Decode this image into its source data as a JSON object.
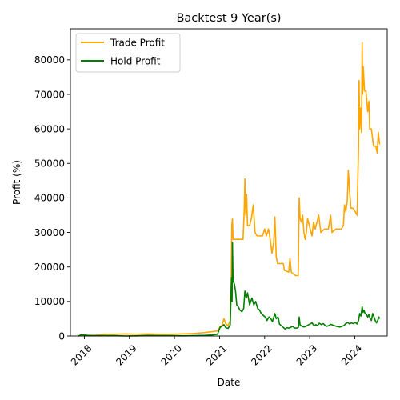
{
  "chart_data": {
    "type": "line",
    "title": "Backtest 9 Year(s)",
    "xlabel": "Date",
    "ylabel": "Profit (%)",
    "xlim": [
      "2017-09-10",
      "2024-09-20"
    ],
    "ylim": [
      0,
      89000
    ],
    "x_ticks": [
      "2018",
      "2019",
      "2020",
      "2021",
      "2022",
      "2023",
      "2024"
    ],
    "y_ticks": [
      0,
      10000,
      20000,
      30000,
      40000,
      50000,
      60000,
      70000,
      80000
    ],
    "grid": false,
    "legend": "top-left",
    "series": [
      {
        "name": "Trade Profit",
        "color": "#ffa500",
        "points": [
          [
            "2017-11-15",
            0
          ],
          [
            "2017-12-10",
            300
          ],
          [
            "2018-01-20",
            200
          ],
          [
            "2018-04-01",
            200
          ],
          [
            "2018-06-15",
            500
          ],
          [
            "2018-09-01",
            500
          ],
          [
            "2018-12-01",
            600
          ],
          [
            "2019-03-01",
            500
          ],
          [
            "2019-06-01",
            600
          ],
          [
            "2019-09-01",
            500
          ],
          [
            "2019-12-01",
            500
          ],
          [
            "2020-03-01",
            600
          ],
          [
            "2020-06-01",
            700
          ],
          [
            "2020-09-01",
            1000
          ],
          [
            "2020-10-20",
            1200
          ],
          [
            "2020-12-20",
            1500
          ],
          [
            "2021-01-05",
            2800
          ],
          [
            "2021-01-20",
            3000
          ],
          [
            "2021-02-05",
            5000
          ],
          [
            "2021-02-20",
            3500
          ],
          [
            "2021-03-10",
            3000
          ],
          [
            "2021-03-28",
            4500
          ],
          [
            "2021-04-05",
            15000
          ],
          [
            "2021-04-10",
            32000
          ],
          [
            "2021-04-15",
            34000
          ],
          [
            "2021-04-20",
            28000
          ],
          [
            "2021-05-01",
            28000
          ],
          [
            "2021-06-01",
            28000
          ],
          [
            "2021-07-10",
            28000
          ],
          [
            "2021-07-20",
            37000
          ],
          [
            "2021-07-25",
            45500
          ],
          [
            "2021-08-01",
            35000
          ],
          [
            "2021-08-08",
            41000
          ],
          [
            "2021-08-15",
            32000
          ],
          [
            "2021-09-01",
            32000
          ],
          [
            "2021-09-15",
            34000
          ],
          [
            "2021-10-01",
            38000
          ],
          [
            "2021-10-15",
            30000
          ],
          [
            "2021-11-01",
            29000
          ],
          [
            "2021-12-15",
            29000
          ],
          [
            "2022-01-01",
            31000
          ],
          [
            "2022-01-15",
            29000
          ],
          [
            "2022-02-01",
            31000
          ],
          [
            "2022-02-15",
            28000
          ],
          [
            "2022-03-01",
            24000
          ],
          [
            "2022-03-15",
            27000
          ],
          [
            "2022-03-25",
            34500
          ],
          [
            "2022-04-05",
            23000
          ],
          [
            "2022-04-15",
            21000
          ],
          [
            "2022-05-01",
            21000
          ],
          [
            "2022-06-01",
            21000
          ],
          [
            "2022-06-10",
            19000
          ],
          [
            "2022-07-15",
            18500
          ],
          [
            "2022-07-25",
            22500
          ],
          [
            "2022-08-05",
            18500
          ],
          [
            "2022-08-20",
            18000
          ],
          [
            "2022-09-10",
            17500
          ],
          [
            "2022-09-30",
            17500
          ],
          [
            "2022-10-08",
            40000
          ],
          [
            "2022-10-15",
            34000
          ],
          [
            "2022-10-25",
            33000
          ],
          [
            "2022-11-05",
            35000
          ],
          [
            "2022-11-15",
            30000
          ],
          [
            "2022-11-25",
            28000
          ],
          [
            "2022-12-05",
            30000
          ],
          [
            "2022-12-15",
            34000
          ],
          [
            "2023-01-05",
            31000
          ],
          [
            "2023-01-20",
            29000
          ],
          [
            "2023-02-01",
            33000
          ],
          [
            "2023-02-15",
            31000
          ],
          [
            "2023-03-01",
            33000
          ],
          [
            "2023-03-15",
            35000
          ],
          [
            "2023-04-01",
            30000
          ],
          [
            "2023-05-01",
            31000
          ],
          [
            "2023-06-01",
            31000
          ],
          [
            "2023-06-20",
            35000
          ],
          [
            "2023-07-01",
            30000
          ],
          [
            "2023-08-01",
            31000
          ],
          [
            "2023-09-01",
            31000
          ],
          [
            "2023-09-15",
            31000
          ],
          [
            "2023-10-01",
            32000
          ],
          [
            "2023-10-10",
            38000
          ],
          [
            "2023-10-20",
            36000
          ],
          [
            "2023-11-01",
            39000
          ],
          [
            "2023-11-10",
            48000
          ],
          [
            "2023-11-20",
            42000
          ],
          [
            "2023-12-01",
            37000
          ],
          [
            "2023-12-20",
            37000
          ],
          [
            "2024-01-05",
            36000
          ],
          [
            "2024-01-20",
            35000
          ],
          [
            "2024-02-01",
            55000
          ],
          [
            "2024-02-05",
            74000
          ],
          [
            "2024-02-10",
            60000
          ],
          [
            "2024-02-18",
            66000
          ],
          [
            "2024-02-25",
            59000
          ],
          [
            "2024-03-01",
            85000
          ],
          [
            "2024-03-05",
            70000
          ],
          [
            "2024-03-10",
            78000
          ],
          [
            "2024-03-20",
            71000
          ],
          [
            "2024-04-01",
            71000
          ],
          [
            "2024-04-15",
            65000
          ],
          [
            "2024-04-25",
            68000
          ],
          [
            "2024-05-01",
            60000
          ],
          [
            "2024-05-15",
            60000
          ],
          [
            "2024-06-01",
            55000
          ],
          [
            "2024-06-20",
            55000
          ],
          [
            "2024-07-01",
            53000
          ],
          [
            "2024-07-10",
            59000
          ],
          [
            "2024-07-20",
            55500
          ]
        ]
      },
      {
        "name": "Hold Profit",
        "color": "#008000",
        "points": [
          [
            "2017-11-15",
            0
          ],
          [
            "2017-12-10",
            400
          ],
          [
            "2018-01-20",
            200
          ],
          [
            "2018-03-01",
            100
          ],
          [
            "2018-06-01",
            100
          ],
          [
            "2018-09-01",
            100
          ],
          [
            "2018-12-01",
            0
          ],
          [
            "2019-03-01",
            50
          ],
          [
            "2019-06-01",
            150
          ],
          [
            "2019-09-01",
            100
          ],
          [
            "2019-12-01",
            100
          ],
          [
            "2020-03-01",
            50
          ],
          [
            "2020-06-01",
            100
          ],
          [
            "2020-09-01",
            150
          ],
          [
            "2020-11-01",
            300
          ],
          [
            "2020-12-15",
            500
          ],
          [
            "2021-01-05",
            2500
          ],
          [
            "2021-01-20",
            2800
          ],
          [
            "2021-02-05",
            3300
          ],
          [
            "2021-02-20",
            2400
          ],
          [
            "2021-03-10",
            2200
          ],
          [
            "2021-03-28",
            3200
          ],
          [
            "2021-04-05",
            14000
          ],
          [
            "2021-04-08",
            17000
          ],
          [
            "2021-04-12",
            10000
          ],
          [
            "2021-04-15",
            27000
          ],
          [
            "2021-04-20",
            16000
          ],
          [
            "2021-05-01",
            15000
          ],
          [
            "2021-05-10",
            13000
          ],
          [
            "2021-05-20",
            9000
          ],
          [
            "2021-06-01",
            8500
          ],
          [
            "2021-06-15",
            7500
          ],
          [
            "2021-07-01",
            7000
          ],
          [
            "2021-07-15",
            8000
          ],
          [
            "2021-07-25",
            13000
          ],
          [
            "2021-08-05",
            11000
          ],
          [
            "2021-08-15",
            12500
          ],
          [
            "2021-09-01",
            9000
          ],
          [
            "2021-09-20",
            11000
          ],
          [
            "2021-10-05",
            9000
          ],
          [
            "2021-10-20",
            10000
          ],
          [
            "2021-11-05",
            8000
          ],
          [
            "2021-11-20",
            7500
          ],
          [
            "2021-12-05",
            6500
          ],
          [
            "2021-12-20",
            6000
          ],
          [
            "2022-01-05",
            5500
          ],
          [
            "2022-01-20",
            4500
          ],
          [
            "2022-02-05",
            5500
          ],
          [
            "2022-02-20",
            5000
          ],
          [
            "2022-03-05",
            4200
          ],
          [
            "2022-03-25",
            6500
          ],
          [
            "2022-04-05",
            5000
          ],
          [
            "2022-04-20",
            5500
          ],
          [
            "2022-05-01",
            3500
          ],
          [
            "2022-05-15",
            3000
          ],
          [
            "2022-06-01",
            2500
          ],
          [
            "2022-06-15",
            2000
          ],
          [
            "2022-07-01",
            2400
          ],
          [
            "2022-07-15",
            2300
          ],
          [
            "2022-08-01",
            2500
          ],
          [
            "2022-08-15",
            2800
          ],
          [
            "2022-09-01",
            2300
          ],
          [
            "2022-09-20",
            2300
          ],
          [
            "2022-10-01",
            2500
          ],
          [
            "2022-10-08",
            5500
          ],
          [
            "2022-10-15",
            3200
          ],
          [
            "2022-11-01",
            2800
          ],
          [
            "2022-11-15",
            2600
          ],
          [
            "2022-12-01",
            2800
          ],
          [
            "2022-12-20",
            3200
          ],
          [
            "2023-01-05",
            3500
          ],
          [
            "2023-01-20",
            3800
          ],
          [
            "2023-02-05",
            3000
          ],
          [
            "2023-02-20",
            3300
          ],
          [
            "2023-03-05",
            3000
          ],
          [
            "2023-03-20",
            3700
          ],
          [
            "2023-04-05",
            3300
          ],
          [
            "2023-04-20",
            3600
          ],
          [
            "2023-05-05",
            3100
          ],
          [
            "2023-05-20",
            2800
          ],
          [
            "2023-06-05",
            3000
          ],
          [
            "2023-06-20",
            3400
          ],
          [
            "2023-07-05",
            3200
          ],
          [
            "2023-07-20",
            3000
          ],
          [
            "2023-08-05",
            2800
          ],
          [
            "2023-08-20",
            2700
          ],
          [
            "2023-09-05",
            2600
          ],
          [
            "2023-09-20",
            2800
          ],
          [
            "2023-10-05",
            3000
          ],
          [
            "2023-10-20",
            3600
          ],
          [
            "2023-11-05",
            3900
          ],
          [
            "2023-11-20",
            3500
          ],
          [
            "2023-12-05",
            3800
          ],
          [
            "2023-12-20",
            3600
          ],
          [
            "2024-01-05",
            3900
          ],
          [
            "2024-01-20",
            3500
          ],
          [
            "2024-02-01",
            4500
          ],
          [
            "2024-02-10",
            6500
          ],
          [
            "2024-02-20",
            5800
          ],
          [
            "2024-03-01",
            8500
          ],
          [
            "2024-03-08",
            6800
          ],
          [
            "2024-03-15",
            7500
          ],
          [
            "2024-03-25",
            6500
          ],
          [
            "2024-04-05",
            6200
          ],
          [
            "2024-04-15",
            5500
          ],
          [
            "2024-04-25",
            6200
          ],
          [
            "2024-05-05",
            5000
          ],
          [
            "2024-05-15",
            4500
          ],
          [
            "2024-05-25",
            6500
          ],
          [
            "2024-06-05",
            5500
          ],
          [
            "2024-06-15",
            4500
          ],
          [
            "2024-06-25",
            3800
          ],
          [
            "2024-07-05",
            4500
          ],
          [
            "2024-07-15",
            5500
          ],
          [
            "2024-07-20",
            5000
          ]
        ]
      }
    ]
  }
}
